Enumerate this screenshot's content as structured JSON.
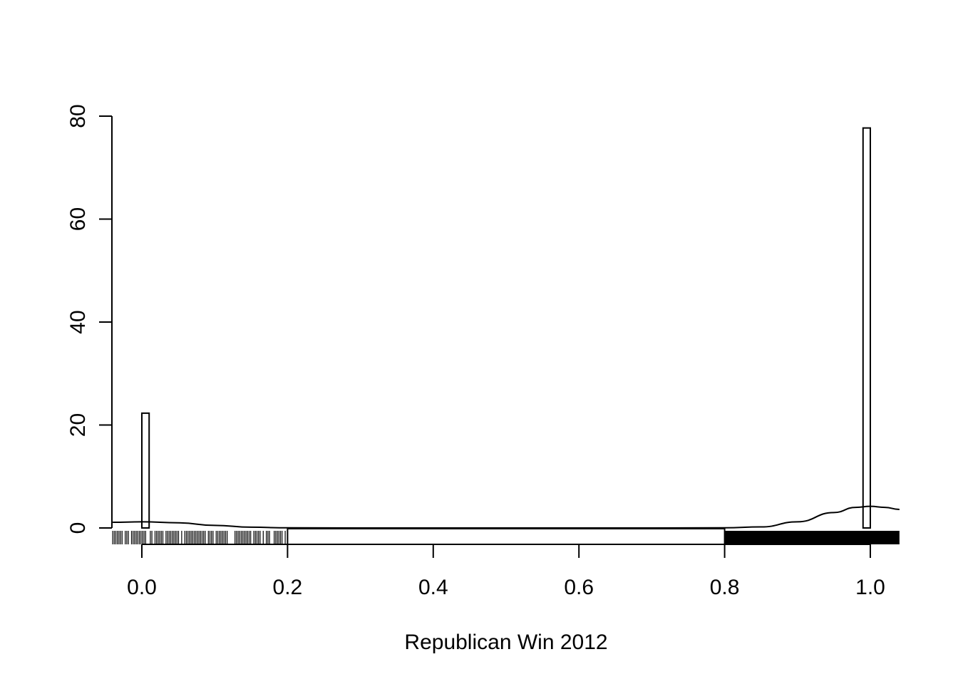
{
  "chart_data": {
    "type": "bar",
    "title": "",
    "xlabel": "Republican Win 2012",
    "ylabel": "",
    "xlim": [
      -0.04,
      1.04
    ],
    "ylim": [
      0,
      80
    ],
    "x_ticks": [
      0.0,
      0.2,
      0.4,
      0.6,
      0.8,
      1.0
    ],
    "x_tick_labels": [
      "0.0",
      "0.2",
      "0.4",
      "0.6",
      "0.8",
      "1.0"
    ],
    "y_ticks": [
      0,
      20,
      40,
      60,
      80
    ],
    "y_tick_labels": [
      "0",
      "20",
      "40",
      "60",
      "80"
    ],
    "grid": false,
    "histogram_bars": [
      {
        "x0": 0.0,
        "x1": 0.01,
        "value": 22.3
      },
      {
        "x0": 0.99,
        "x1": 1.0,
        "value": 77.7
      }
    ],
    "density_curve": [
      [
        -0.04,
        1.1
      ],
      [
        0.0,
        1.2
      ],
      [
        0.05,
        1.0
      ],
      [
        0.1,
        0.5
      ],
      [
        0.15,
        0.15
      ],
      [
        0.2,
        0.03
      ],
      [
        0.3,
        0.0
      ],
      [
        0.5,
        0.0
      ],
      [
        0.7,
        0.0
      ],
      [
        0.8,
        0.03
      ],
      [
        0.85,
        0.2
      ],
      [
        0.9,
        1.2
      ],
      [
        0.95,
        3.0
      ],
      [
        0.98,
        4.0
      ],
      [
        1.0,
        4.2
      ],
      [
        1.02,
        4.0
      ],
      [
        1.04,
        3.6
      ]
    ],
    "rug_segments": [
      {
        "x0": -0.04,
        "x1": 0.2,
        "density": "sparse"
      },
      {
        "x0": 0.8,
        "x1": 1.04,
        "density": "dense"
      }
    ],
    "boxplot": {
      "min": 0.2,
      "max": 0.8
    }
  }
}
